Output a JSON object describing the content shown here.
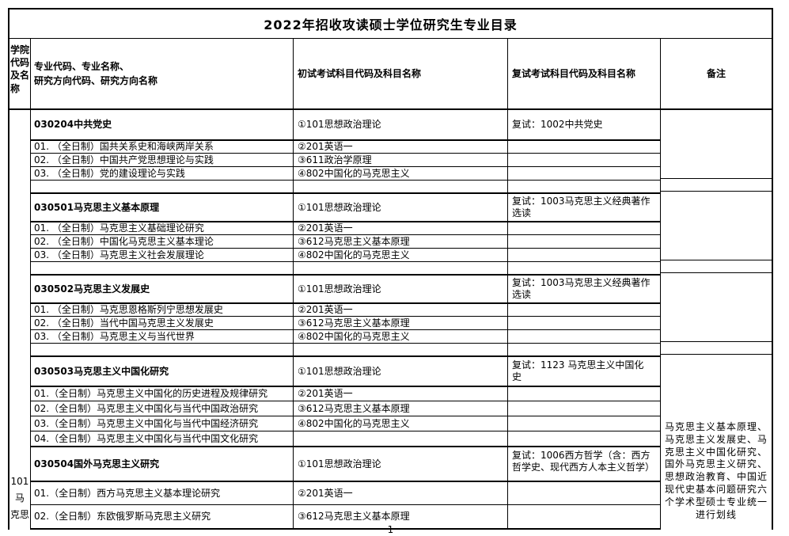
{
  "title": "2022年招收攻读硕士学位研究生专业目录",
  "page_number": "1",
  "header": {
    "college": "学院代码及名称",
    "major": "专业代码、专业名称、\n研究方向代码、研究方向名称",
    "initial": "初试考试科目代码及科目名称",
    "retest": "复试考试科目代码及科目名称",
    "remark": "备注"
  },
  "college": {
    "label": "101\n马\n克思"
  },
  "remark_text": "马克思主义基本原理、马克思主义发展史、马克思主义中国化研究、国外马克思主义研究、思想政治教育、中国近现代史基本问题研究六个学术型硕士专业统一进行划线",
  "sections": [
    {
      "major": "030204中共党史",
      "initial": "①101思想政治理论",
      "retest": "复试：1002中共党史",
      "directions": [
        {
          "name": "01. （全日制）国共关系史和海峡两岸关系",
          "exam": "②201英语一"
        },
        {
          "name": "02. （全日制）中国共产党思想理论与实践",
          "exam": "③611政治学原理"
        },
        {
          "name": "03. （全日制）党的建设理论与实践",
          "exam": "④802中国化的马克思主义"
        }
      ]
    },
    {
      "major": "030501马克思主义基本原理",
      "initial": "①101思想政治理论",
      "retest": "复试：1003马克思主义经典著作选读",
      "directions": [
        {
          "name": "01. （全日制）马克思主义基础理论研究",
          "exam": "②201英语一"
        },
        {
          "name": "02. （全日制）中国化马克思主义基本理论",
          "exam": "③612马克思主义基本原理"
        },
        {
          "name": "03. （全日制）马克思主义社会发展理论",
          "exam": "④802中国化的马克思主义"
        }
      ]
    },
    {
      "major": "030502马克思主义发展史",
      "initial": "①101思想政治理论",
      "retest": "复试：1003马克思主义经典著作选读",
      "directions": [
        {
          "name": "01. （全日制）马克思恩格斯列宁思想发展史",
          "exam": "②201英语一"
        },
        {
          "name": "02. （全日制）当代中国马克思主义发展史",
          "exam": "③612马克思主义基本原理"
        },
        {
          "name": "03. （全日制）马克思主义与当代世界",
          "exam": "④802中国化的马克思主义"
        }
      ]
    },
    {
      "major": "030503马克思主义中国化研究",
      "initial": "①101思想政治理论",
      "retest": "复试：1123 马克思主义中国化史",
      "directions": [
        {
          "name": "01.（全日制）马克思主义中国化的历史进程及规律研究",
          "exam": "②201英语一"
        },
        {
          "name": "02.（全日制）马克思主义中国化与当代中国政治研究",
          "exam": "③612马克思主义基本原理"
        },
        {
          "name": "03.（全日制）马克思主义中国化与当代中国经济研究",
          "exam": "④802中国化的马克思主义"
        },
        {
          "name": "04.（全日制）马克思主义中国化与当代中国文化研究",
          "exam": ""
        }
      ]
    },
    {
      "major": "030504国外马克思主义研究",
      "initial": "①101思想政治理论",
      "retest": "复试：1006西方哲学（含：西方哲学史、现代西方人本主义哲学）",
      "directions": [
        {
          "name": "01.（全日制）西方马克思主义基本理论研究",
          "exam": "②201英语一"
        },
        {
          "name": "02.（全日制）东欧俄罗斯马克思主义研究",
          "exam": "③612马克思主义基本原理"
        }
      ]
    }
  ]
}
